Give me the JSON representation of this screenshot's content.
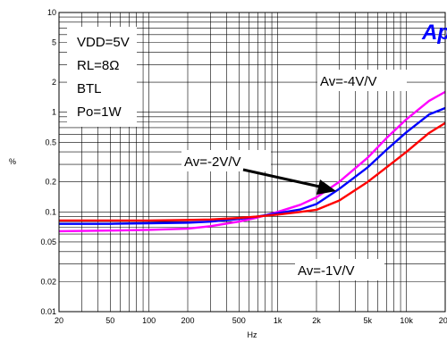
{
  "chart_data": {
    "type": "line",
    "title": "",
    "xlabel": "Hz",
    "ylabel": "%",
    "xscale": "log",
    "yscale": "log",
    "xlim": [
      20,
      20000
    ],
    "ylim": [
      0.01,
      10
    ],
    "grid": true,
    "x_ticks": [
      {
        "value": 20,
        "label": "20"
      },
      {
        "value": 50,
        "label": "50"
      },
      {
        "value": 100,
        "label": "100"
      },
      {
        "value": 200,
        "label": "200"
      },
      {
        "value": 500,
        "label": "500"
      },
      {
        "value": 1000,
        "label": "1k"
      },
      {
        "value": 2000,
        "label": "2k"
      },
      {
        "value": 5000,
        "label": "5k"
      },
      {
        "value": 10000,
        "label": "10k"
      },
      {
        "value": 20000,
        "label": "20k"
      }
    ],
    "y_ticks": [
      {
        "value": 0.01,
        "label": "0.01"
      },
      {
        "value": 0.02,
        "label": "0.02"
      },
      {
        "value": 0.05,
        "label": "0.05"
      },
      {
        "value": 0.1,
        "label": "0.1"
      },
      {
        "value": 0.2,
        "label": "0.2"
      },
      {
        "value": 0.5,
        "label": "0.5"
      },
      {
        "value": 1,
        "label": "1"
      },
      {
        "value": 2,
        "label": "2"
      },
      {
        "value": 5,
        "label": "5"
      },
      {
        "value": 10,
        "label": "10"
      }
    ],
    "conditions": [
      "VDD=5V",
      "RL=8Ω",
      "BTL",
      "Po=1W"
    ],
    "logo": "Ap",
    "series": [
      {
        "name": "Av=-4V/V",
        "color": "#ff00ff",
        "points": [
          [
            20,
            0.064
          ],
          [
            50,
            0.065
          ],
          [
            100,
            0.066
          ],
          [
            200,
            0.068
          ],
          [
            300,
            0.072
          ],
          [
            500,
            0.08
          ],
          [
            700,
            0.088
          ],
          [
            1000,
            0.1
          ],
          [
            1500,
            0.118
          ],
          [
            2000,
            0.14
          ],
          [
            3000,
            0.2
          ],
          [
            5000,
            0.35
          ],
          [
            7000,
            0.55
          ],
          [
            10000,
            0.85
          ],
          [
            15000,
            1.3
          ],
          [
            20000,
            1.6
          ]
        ]
      },
      {
        "name": "Av=-2V/V",
        "color": "#0000ff",
        "points": [
          [
            20,
            0.076
          ],
          [
            50,
            0.076
          ],
          [
            100,
            0.077
          ],
          [
            200,
            0.078
          ],
          [
            300,
            0.08
          ],
          [
            500,
            0.085
          ],
          [
            700,
            0.09
          ],
          [
            1000,
            0.097
          ],
          [
            1500,
            0.106
          ],
          [
            2000,
            0.12
          ],
          [
            3000,
            0.17
          ],
          [
            5000,
            0.28
          ],
          [
            7000,
            0.42
          ],
          [
            10000,
            0.63
          ],
          [
            15000,
            0.95
          ],
          [
            20000,
            1.1
          ]
        ]
      },
      {
        "name": "Av=-1V/V",
        "color": "#ff0000",
        "points": [
          [
            20,
            0.082
          ],
          [
            50,
            0.082
          ],
          [
            100,
            0.082
          ],
          [
            200,
            0.083
          ],
          [
            300,
            0.084
          ],
          [
            500,
            0.087
          ],
          [
            700,
            0.09
          ],
          [
            1000,
            0.094
          ],
          [
            1500,
            0.1
          ],
          [
            2000,
            0.105
          ],
          [
            3000,
            0.13
          ],
          [
            5000,
            0.2
          ],
          [
            7000,
            0.28
          ],
          [
            10000,
            0.4
          ],
          [
            15000,
            0.62
          ],
          [
            20000,
            0.78
          ]
        ]
      }
    ],
    "annotations": [
      "Av=-4V/V",
      "Av=-2V/V",
      "Av=-1V/V"
    ]
  }
}
